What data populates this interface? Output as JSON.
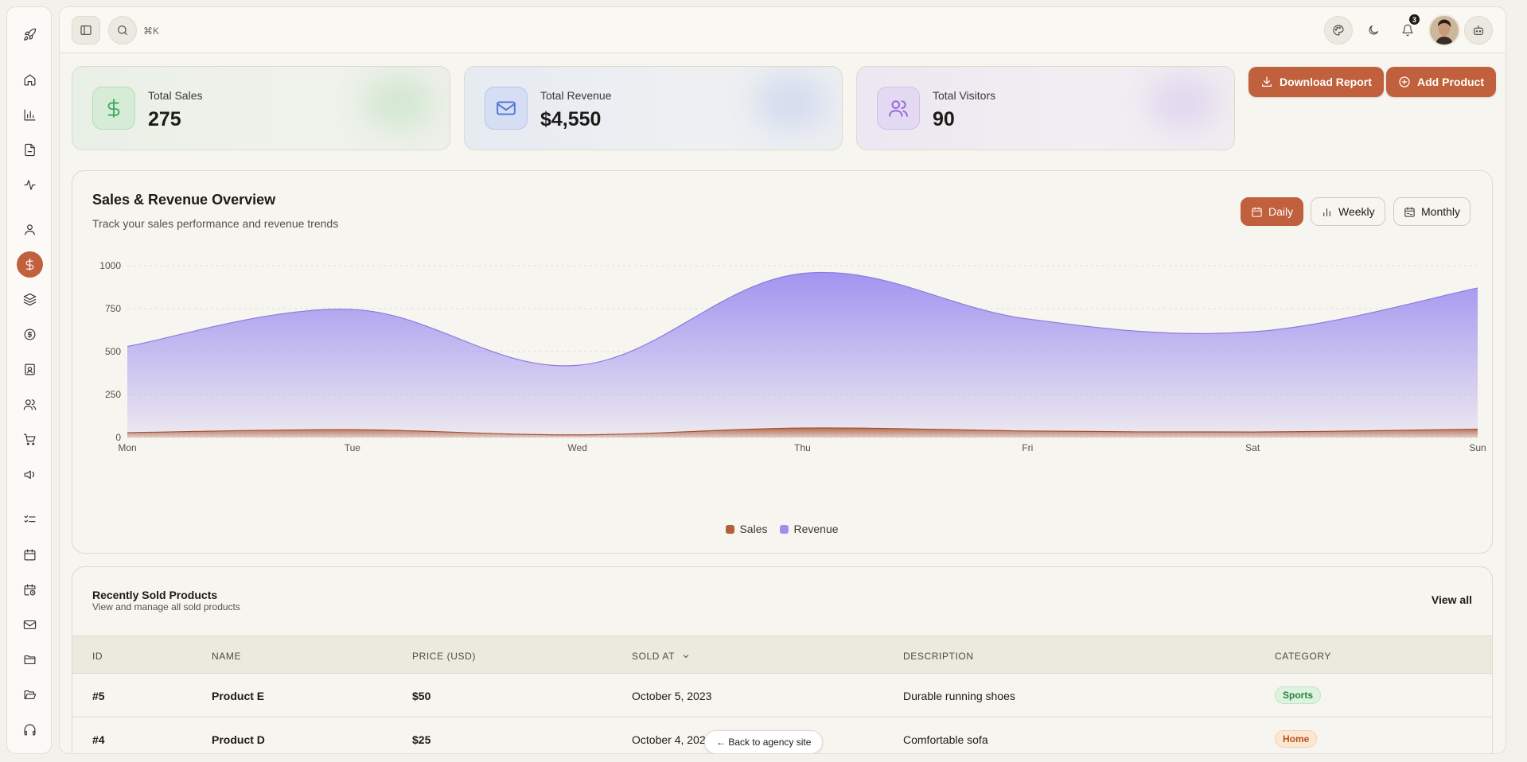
{
  "topbar": {
    "shortcut_hint": "⌘K",
    "notification_count": "3"
  },
  "stats": [
    {
      "label": "Total Sales",
      "value": "275",
      "icon": "dollar-icon",
      "tint": "#e4efe1",
      "accent": "#4caf6a"
    },
    {
      "label": "Total Revenue",
      "value": "$4,550",
      "icon": "mail-icon",
      "tint": "#e3e8f3",
      "accent": "#5b7fd6"
    },
    {
      "label": "Total Visitors",
      "value": "90",
      "icon": "users-icon",
      "tint": "#ebe5f1",
      "accent": "#9c6fd8"
    }
  ],
  "actions": {
    "download_report": "Download Report",
    "add_product": "Add Product"
  },
  "chart_card": {
    "title": "Sales & Revenue Overview",
    "subtitle": "Track your sales performance and revenue trends",
    "toggles": {
      "daily": "Daily",
      "weekly": "Weekly",
      "monthly": "Monthly"
    },
    "active_toggle": "Daily"
  },
  "chart_data": {
    "type": "area",
    "categories": [
      "Mon",
      "Tue",
      "Wed",
      "Thu",
      "Fri",
      "Sat",
      "Sun"
    ],
    "series": [
      {
        "name": "Sales",
        "color": "#b35f3c",
        "values": [
          28,
          45,
          15,
          55,
          38,
          32,
          48
        ]
      },
      {
        "name": "Revenue",
        "color": "#9d8ff0",
        "values": [
          530,
          745,
          420,
          955,
          690,
          615,
          870
        ]
      }
    ],
    "yticks": [
      0,
      250,
      500,
      750,
      1000
    ],
    "ylim": [
      0,
      1000
    ],
    "grid": true,
    "legend": "bottom-center"
  },
  "table": {
    "title": "Recently Sold Products",
    "subtitle": "View and manage all sold products",
    "view_all": "View all",
    "columns": [
      "ID",
      "NAME",
      "PRICE (USD)",
      "SOLD AT",
      "DESCRIPTION",
      "CATEGORY"
    ],
    "rows": [
      {
        "id": "#5",
        "name": "Product E",
        "price": "$50",
        "sold_at": "October 5, 2023",
        "description": "Durable running shoes",
        "category": "Sports",
        "cat_bg": "#dcf3df",
        "cat_fg": "#2e7d3e"
      },
      {
        "id": "#4",
        "name": "Product D",
        "price": "$25",
        "sold_at": "October 4, 2023",
        "description": "Comfortable sofa",
        "category": "Home",
        "cat_bg": "#fde7d3",
        "cat_fg": "#b4521e"
      }
    ]
  },
  "back_link": "← Back to agency site"
}
